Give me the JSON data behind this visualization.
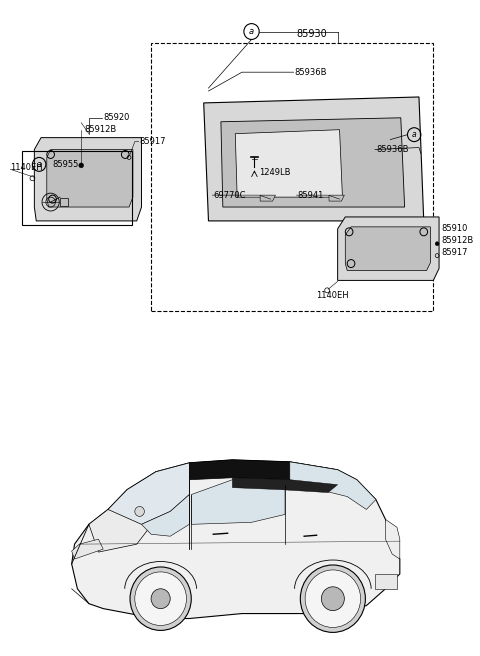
{
  "bg": "#ffffff",
  "lc": "#000000",
  "gray1": "#d8d8d8",
  "gray2": "#c0c0c0",
  "gray3": "#a8a8a8",
  "fs_small": 6.0,
  "fs_label": 6.5,
  "parts": {
    "85930": "85930",
    "85936B": "85936B",
    "85920": "85920",
    "85912B": "85912B",
    "85917": "85917",
    "1140EH": "1140EH",
    "1249LB": "1249LB",
    "69770C": "69770C",
    "85941": "85941",
    "85910": "85910",
    "85955": "85955",
    "a": "a"
  }
}
